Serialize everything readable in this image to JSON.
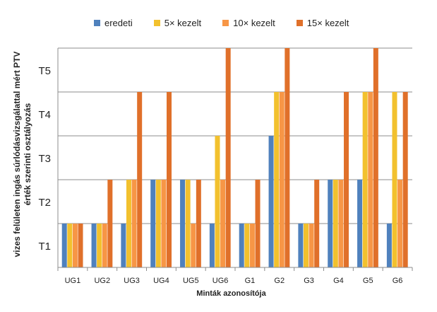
{
  "chart_data": {
    "type": "bar",
    "categories": [
      "UG1",
      "UG2",
      "UG3",
      "UG4",
      "UG5",
      "UG6",
      "G1",
      "G2",
      "G3",
      "G4",
      "G5",
      "G6"
    ],
    "y_tick_labels": [
      "T1",
      "T2",
      "T3",
      "T4",
      "T5"
    ],
    "ylim": [
      0.5,
      5.5
    ],
    "ylabel_line1": "vizes felületen ingás súrlódásvizsgálattal mért PTV",
    "ylabel_line2": "érték szerinti osztályozás",
    "xlabel": "Minták azonosítója",
    "grid": true,
    "legend_position": "top",
    "series": [
      {
        "name": "eredeti",
        "color": "#4f81bd",
        "values": [
          1.5,
          1.5,
          1.5,
          2.5,
          2.5,
          1.5,
          1.5,
          3.5,
          1.5,
          2.5,
          2.5,
          1.5
        ]
      },
      {
        "name": "5× kezelt",
        "color": "#f2c12e",
        "values": [
          1.5,
          1.5,
          2.5,
          2.5,
          2.5,
          3.5,
          1.5,
          4.5,
          1.5,
          2.5,
          4.5,
          4.5
        ]
      },
      {
        "name": "10× kezelt",
        "color": "#f79646",
        "values": [
          1.5,
          1.5,
          2.5,
          2.5,
          1.5,
          2.5,
          1.5,
          4.5,
          1.5,
          2.5,
          4.5,
          2.5
        ]
      },
      {
        "name": "15× kezelt",
        "color": "#e0702a",
        "values": [
          1.5,
          2.5,
          4.5,
          4.5,
          2.5,
          5.5,
          2.5,
          5.5,
          2.5,
          4.5,
          5.5,
          4.5
        ]
      }
    ]
  }
}
